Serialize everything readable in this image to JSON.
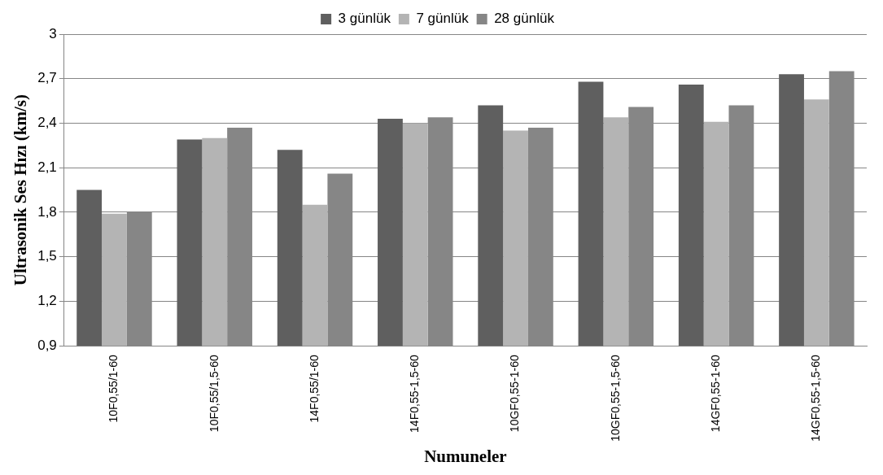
{
  "chart_data": {
    "type": "bar",
    "xlabel": "Numuneler",
    "ylabel": "Ultrasonik Ses Hızı (km/s)",
    "categories": [
      "10F0,55/1-60",
      "10F0,55/1,5-60",
      "14F0,55/1-60",
      "14F0,55-1,5-60",
      "10GF0,55-1-60",
      "10GF0,55-1,5-60",
      "14GF0,55-1-60",
      "14GF0,55-1,5-60"
    ],
    "series": [
      {
        "name": "3 günlük",
        "color": "#5f5f5f",
        "values": [
          1.95,
          2.29,
          2.22,
          2.43,
          2.52,
          2.68,
          2.66,
          2.73
        ]
      },
      {
        "name": "7 günlük",
        "color": "#b4b4b4",
        "values": [
          1.79,
          2.3,
          1.85,
          2.4,
          2.35,
          2.44,
          2.41,
          2.56
        ]
      },
      {
        "name": "28 günlük",
        "color": "#868686",
        "values": [
          1.8,
          2.37,
          2.06,
          2.44,
          2.37,
          2.51,
          2.52,
          2.75
        ]
      }
    ],
    "ylim": [
      0.9,
      3
    ],
    "yticks": [
      {
        "value": 0.9,
        "label": "0,9"
      },
      {
        "value": 1.2,
        "label": "1,2"
      },
      {
        "value": 1.5,
        "label": "1,5"
      },
      {
        "value": 1.8,
        "label": "1,8"
      },
      {
        "value": 2.1,
        "label": "2,1"
      },
      {
        "value": 2.4,
        "label": "2,4"
      },
      {
        "value": 2.7,
        "label": "2,7"
      },
      {
        "value": 3,
        "label": "3"
      }
    ],
    "grid": "y",
    "legend": "top"
  }
}
